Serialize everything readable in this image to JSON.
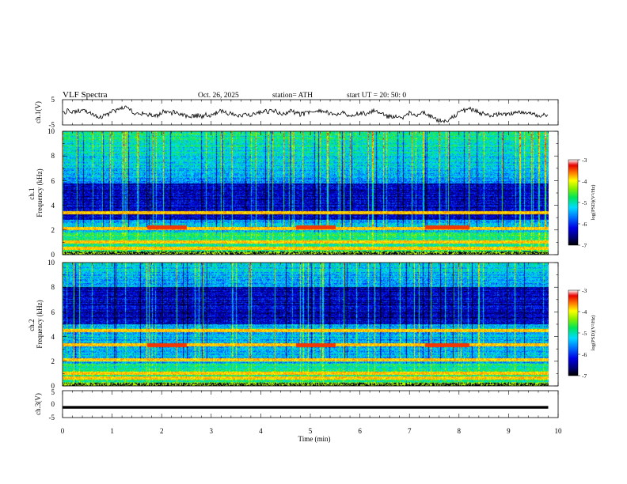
{
  "header": {
    "title": "VLF  Spectra",
    "date": "Oct. 26, 2025",
    "station": "station= ATH",
    "start_ut": "start  UT  =   20: 50: 0"
  },
  "chart_data": [
    {
      "type": "line",
      "name": "ch1-waveform",
      "ylabel": "ch.1(V)",
      "ylim": [
        -5,
        5
      ],
      "ytick_labels": [
        "5",
        "-5"
      ],
      "x_range_min": [
        0,
        9.8
      ],
      "approx_level": 0
    },
    {
      "type": "heatmap",
      "name": "ch1-spectrogram",
      "ylabel": "ch.1\nFrequency  (kHz)",
      "ylim": [
        0,
        10
      ],
      "ytick_labels": [
        "0",
        "2",
        "4",
        "6",
        "8",
        "10"
      ],
      "x_range_min": [
        0,
        9.8
      ],
      "colorbar": {
        "label": "log(PSD)(V²/Hz)",
        "range": [
          -7,
          -3
        ],
        "tick_labels": [
          "-3",
          "-4",
          "-5",
          "-6",
          "-7"
        ]
      },
      "features": {
        "dark_band_khz": [
          2.8,
          5.8
        ],
        "strong_tones_khz": [
          0.5,
          1.0,
          2.1,
          3.4
        ],
        "bursts": [
          {
            "t_min": [
              1.7,
              2.5
            ],
            "f_khz": 2.2
          },
          {
            "t_min": [
              4.7,
              5.5
            ],
            "f_khz": 2.2
          },
          {
            "t_min": [
              7.3,
              8.2
            ],
            "f_khz": 2.2
          }
        ]
      }
    },
    {
      "type": "heatmap",
      "name": "ch2-spectrogram",
      "ylabel": "ch.2\nFrequency  (kHz)",
      "ylim": [
        0,
        10
      ],
      "ytick_labels": [
        "0",
        "2",
        "4",
        "6",
        "8",
        "10"
      ],
      "x_range_min": [
        0,
        9.8
      ],
      "colorbar": {
        "label": "log(PSD)(V²/Hz)",
        "range": [
          -7,
          -3
        ],
        "tick_labels": [
          "-3",
          "-4",
          "-5",
          "-6",
          "-7"
        ]
      },
      "features": {
        "dark_band_khz": [
          5.0,
          8.0
        ],
        "strong_tones_khz": [
          0.6,
          1.0,
          2.1,
          3.3,
          4.5
        ],
        "bursts": [
          {
            "t_min": [
              1.7,
              2.5
            ],
            "f_khz": 3.3
          },
          {
            "t_min": [
              4.7,
              5.5
            ],
            "f_khz": 3.3
          },
          {
            "t_min": [
              7.3,
              8.2
            ],
            "f_khz": 3.3
          }
        ]
      }
    },
    {
      "type": "line",
      "name": "ch3-waveform",
      "ylabel": "ch.3(V)",
      "ylim": [
        -5,
        5
      ],
      "ytick_labels": [
        "5",
        "0",
        "-5"
      ],
      "x_range_min": [
        0,
        9.8
      ],
      "approx_level": -1.2
    }
  ],
  "xaxis": {
    "label": "Time  (min)",
    "range": [
      0,
      10
    ],
    "tick_labels": [
      "0",
      "1",
      "2",
      "3",
      "4",
      "5",
      "6",
      "7",
      "8",
      "9",
      "10"
    ]
  },
  "colors": {
    "background": "#ffffff",
    "line": "#000000"
  }
}
